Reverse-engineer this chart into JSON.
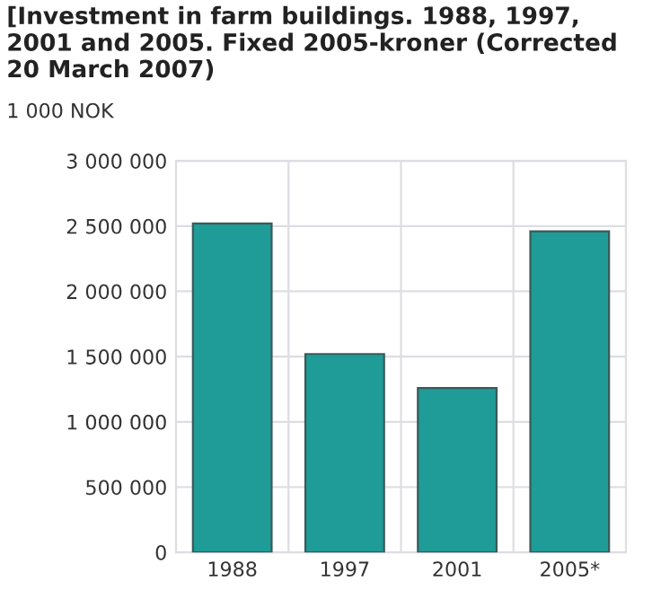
{
  "chart_data": {
    "type": "bar",
    "title": "[Investment in farm buildings. 1988, 1997, 2001 and 2005. Fixed 2005-kroner (Corrected 20 March 2007)",
    "ylabel": "1 000 NOK",
    "categories": [
      "1988",
      "1997",
      "2001",
      "2005*"
    ],
    "values": [
      2520000,
      1520000,
      1260000,
      2460000
    ],
    "color": "#1f9b98",
    "ylim": [
      0,
      3000000
    ],
    "yticks": [
      {
        "value": 0,
        "label": "0"
      },
      {
        "value": 500000,
        "label": "500 000"
      },
      {
        "value": 1000000,
        "label": "1 000 000"
      },
      {
        "value": 1500000,
        "label": "1 500 000"
      },
      {
        "value": 2000000,
        "label": "2 000 000"
      },
      {
        "value": 2500000,
        "label": "2 500 000"
      },
      {
        "value": 3000000,
        "label": "3 000 000"
      }
    ],
    "grid": true
  }
}
